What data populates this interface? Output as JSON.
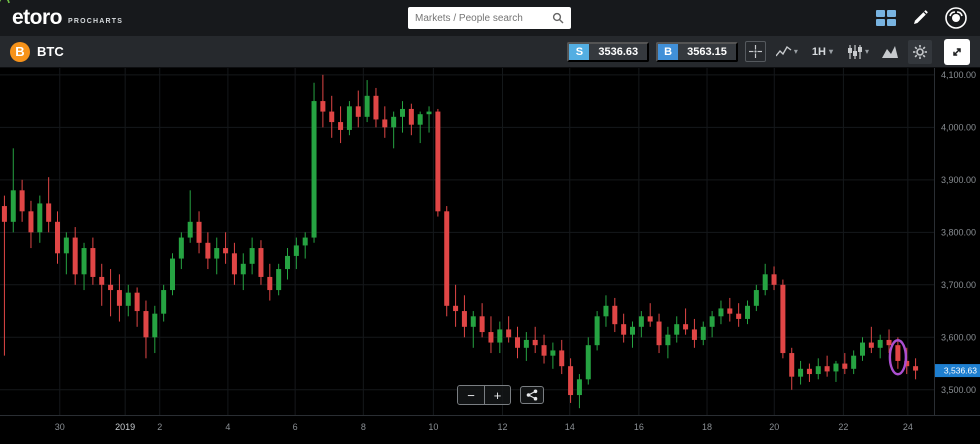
{
  "header": {
    "logo": "etoro",
    "logo_sub": "PROCHARTS",
    "search_placeholder": "Markets / People search"
  },
  "toolbar": {
    "instrument": "BTC",
    "instrument_symbol": "B",
    "sell_label": "S",
    "sell_price": "3536.63",
    "buy_label": "B",
    "buy_price": "3563.15",
    "timeframe": "1H"
  },
  "zoom": {
    "out_label": "−",
    "in_label": "+"
  },
  "chart_data": {
    "type": "candlestick",
    "symbol": "BTC",
    "timeframe": "1H",
    "current_price": "3,536.63",
    "current_price_value": 3536.63,
    "colors": {
      "up": "#26a342",
      "down": "#e04646",
      "price_tag": "#1e7fd0",
      "grid": "#15181b",
      "axis_text": "#8a8f94",
      "annotation": "#ab4fd0"
    },
    "price_axis": {
      "min": 3452,
      "max": 4113,
      "ticks": [
        {
          "value": 4100,
          "label": "4,100.00"
        },
        {
          "value": 4000,
          "label": "4,000.00"
        },
        {
          "value": 3900,
          "label": "3,900.00"
        },
        {
          "value": 3800,
          "label": "3,800.00"
        },
        {
          "value": 3700,
          "label": "3,700.00"
        },
        {
          "value": 3600,
          "label": "3,600.00"
        },
        {
          "value": 3500,
          "label": "3,500.00"
        }
      ]
    },
    "x_labels": [
      {
        "label": "30",
        "pos": 0.064
      },
      {
        "label": "2019",
        "pos": 0.134
      },
      {
        "label": "2",
        "pos": 0.171
      },
      {
        "label": "4",
        "pos": 0.244
      },
      {
        "label": "6",
        "pos": 0.316
      },
      {
        "label": "8",
        "pos": 0.389
      },
      {
        "label": "10",
        "pos": 0.464
      },
      {
        "label": "12",
        "pos": 0.538
      },
      {
        "label": "14",
        "pos": 0.61
      },
      {
        "label": "16",
        "pos": 0.684
      },
      {
        "label": "18",
        "pos": 0.757
      },
      {
        "label": "20",
        "pos": 0.829
      },
      {
        "label": "22",
        "pos": 0.903
      },
      {
        "label": "24",
        "pos": 0.972
      }
    ],
    "annotation": {
      "type": "ellipse",
      "index": 101,
      "price": 3562,
      "rx": 8,
      "ry": 17
    },
    "candles": [
      [
        3850,
        3870,
        3565,
        3820
      ],
      [
        3820,
        3960,
        3800,
        3880
      ],
      [
        3880,
        3900,
        3820,
        3840
      ],
      [
        3840,
        3860,
        3770,
        3800
      ],
      [
        3800,
        3870,
        3780,
        3855
      ],
      [
        3855,
        3905,
        3800,
        3820
      ],
      [
        3820,
        3840,
        3740,
        3760
      ],
      [
        3760,
        3800,
        3720,
        3790
      ],
      [
        3790,
        3810,
        3700,
        3720
      ],
      [
        3720,
        3780,
        3690,
        3770
      ],
      [
        3770,
        3790,
        3700,
        3715
      ],
      [
        3715,
        3740,
        3660,
        3700
      ],
      [
        3700,
        3730,
        3640,
        3690
      ],
      [
        3690,
        3720,
        3630,
        3660
      ],
      [
        3660,
        3700,
        3640,
        3685
      ],
      [
        3685,
        3695,
        3620,
        3650
      ],
      [
        3650,
        3670,
        3560,
        3600
      ],
      [
        3600,
        3660,
        3570,
        3645
      ],
      [
        3645,
        3700,
        3630,
        3690
      ],
      [
        3690,
        3760,
        3680,
        3750
      ],
      [
        3750,
        3800,
        3730,
        3790
      ],
      [
        3790,
        3880,
        3780,
        3820
      ],
      [
        3820,
        3840,
        3760,
        3780
      ],
      [
        3780,
        3800,
        3730,
        3750
      ],
      [
        3750,
        3790,
        3720,
        3770
      ],
      [
        3770,
        3800,
        3740,
        3760
      ],
      [
        3760,
        3780,
        3700,
        3720
      ],
      [
        3720,
        3760,
        3690,
        3740
      ],
      [
        3740,
        3790,
        3720,
        3770
      ],
      [
        3770,
        3785,
        3700,
        3715
      ],
      [
        3715,
        3740,
        3670,
        3690
      ],
      [
        3690,
        3740,
        3680,
        3730
      ],
      [
        3730,
        3770,
        3710,
        3755
      ],
      [
        3755,
        3790,
        3730,
        3775
      ],
      [
        3775,
        3800,
        3750,
        3790
      ],
      [
        3790,
        4085,
        3780,
        4050
      ],
      [
        4050,
        4100,
        4000,
        4030
      ],
      [
        4030,
        4060,
        3980,
        4010
      ],
      [
        4010,
        4040,
        3970,
        3995
      ],
      [
        3995,
        4050,
        3985,
        4040
      ],
      [
        4040,
        4070,
        4000,
        4020
      ],
      [
        4020,
        4090,
        4010,
        4060
      ],
      [
        4060,
        4075,
        4000,
        4015
      ],
      [
        4015,
        4040,
        3980,
        4000
      ],
      [
        4000,
        4030,
        3960,
        4020
      ],
      [
        4020,
        4050,
        3990,
        4035
      ],
      [
        4035,
        4045,
        3985,
        4005
      ],
      [
        4005,
        4030,
        3970,
        4025
      ],
      [
        4025,
        4040,
        3990,
        4030
      ],
      [
        4030,
        4035,
        3830,
        3840
      ],
      [
        3840,
        3850,
        3640,
        3660
      ],
      [
        3660,
        3700,
        3620,
        3650
      ],
      [
        3650,
        3680,
        3600,
        3620
      ],
      [
        3620,
        3650,
        3580,
        3640
      ],
      [
        3640,
        3665,
        3600,
        3610
      ],
      [
        3610,
        3640,
        3570,
        3590
      ],
      [
        3590,
        3630,
        3570,
        3615
      ],
      [
        3615,
        3640,
        3590,
        3600
      ],
      [
        3600,
        3620,
        3560,
        3580
      ],
      [
        3580,
        3610,
        3555,
        3595
      ],
      [
        3595,
        3620,
        3570,
        3585
      ],
      [
        3585,
        3605,
        3550,
        3565
      ],
      [
        3565,
        3590,
        3540,
        3575
      ],
      [
        3575,
        3595,
        3530,
        3545
      ],
      [
        3545,
        3560,
        3475,
        3490
      ],
      [
        3490,
        3530,
        3465,
        3520
      ],
      [
        3520,
        3600,
        3510,
        3585
      ],
      [
        3585,
        3650,
        3575,
        3640
      ],
      [
        3640,
        3680,
        3620,
        3660
      ],
      [
        3660,
        3675,
        3610,
        3625
      ],
      [
        3625,
        3645,
        3590,
        3605
      ],
      [
        3605,
        3630,
        3580,
        3620
      ],
      [
        3620,
        3650,
        3600,
        3640
      ],
      [
        3640,
        3665,
        3620,
        3630
      ],
      [
        3630,
        3645,
        3570,
        3585
      ],
      [
        3585,
        3620,
        3560,
        3605
      ],
      [
        3605,
        3640,
        3590,
        3625
      ],
      [
        3625,
        3655,
        3605,
        3615
      ],
      [
        3615,
        3635,
        3580,
        3595
      ],
      [
        3595,
        3630,
        3585,
        3620
      ],
      [
        3620,
        3650,
        3600,
        3640
      ],
      [
        3640,
        3670,
        3625,
        3655
      ],
      [
        3655,
        3675,
        3630,
        3645
      ],
      [
        3645,
        3665,
        3620,
        3635
      ],
      [
        3635,
        3670,
        3625,
        3660
      ],
      [
        3660,
        3700,
        3650,
        3690
      ],
      [
        3690,
        3740,
        3680,
        3720
      ],
      [
        3720,
        3735,
        3690,
        3700
      ],
      [
        3700,
        3710,
        3560,
        3570
      ],
      [
        3570,
        3580,
        3500,
        3525
      ],
      [
        3525,
        3555,
        3510,
        3540
      ],
      [
        3540,
        3550,
        3515,
        3530
      ],
      [
        3530,
        3560,
        3520,
        3545
      ],
      [
        3545,
        3565,
        3525,
        3535
      ],
      [
        3535,
        3555,
        3515,
        3550
      ],
      [
        3550,
        3570,
        3530,
        3540
      ],
      [
        3540,
        3575,
        3530,
        3565
      ],
      [
        3565,
        3600,
        3555,
        3590
      ],
      [
        3590,
        3620,
        3570,
        3580
      ],
      [
        3580,
        3605,
        3560,
        3595
      ],
      [
        3595,
        3615,
        3570,
        3585
      ],
      [
        3585,
        3600,
        3540,
        3555
      ],
      [
        3555,
        3580,
        3530,
        3545
      ],
      [
        3545,
        3560,
        3520,
        3536.63
      ]
    ]
  }
}
